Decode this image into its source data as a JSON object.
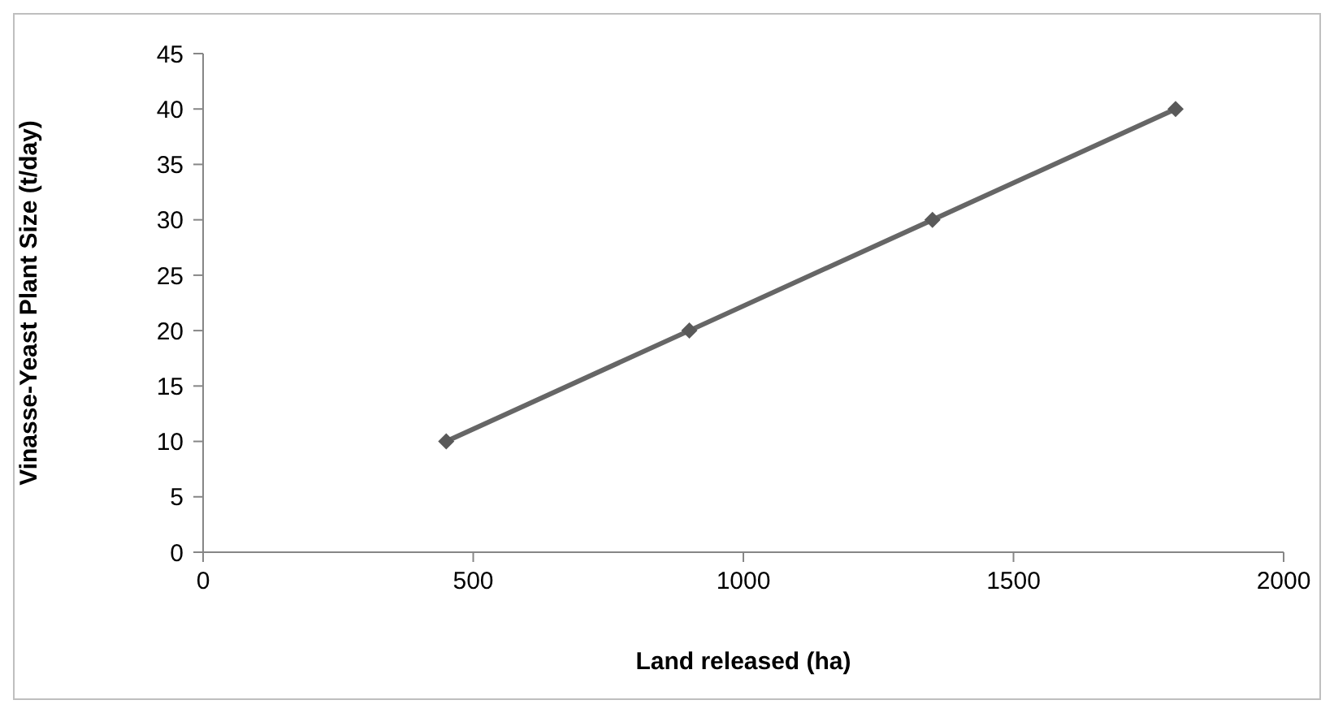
{
  "chart_data": {
    "type": "line",
    "xlabel": "Land released (ha)",
    "ylabel": "Vinasse-Yeast Plant Size (t/day)",
    "x": [
      450,
      900,
      1350,
      1800
    ],
    "series": [
      {
        "color": "#666666",
        "values": [
          10,
          20,
          30,
          40
        ]
      }
    ],
    "xlim": [
      0,
      2000
    ],
    "xticks": [
      0,
      500,
      1000,
      1500,
      2000
    ],
    "ylim": [
      0,
      45
    ],
    "yticks": [
      0,
      5,
      10,
      15,
      20,
      25,
      30,
      35,
      40,
      45
    ],
    "marker": "diamond",
    "line_style": "solid"
  }
}
